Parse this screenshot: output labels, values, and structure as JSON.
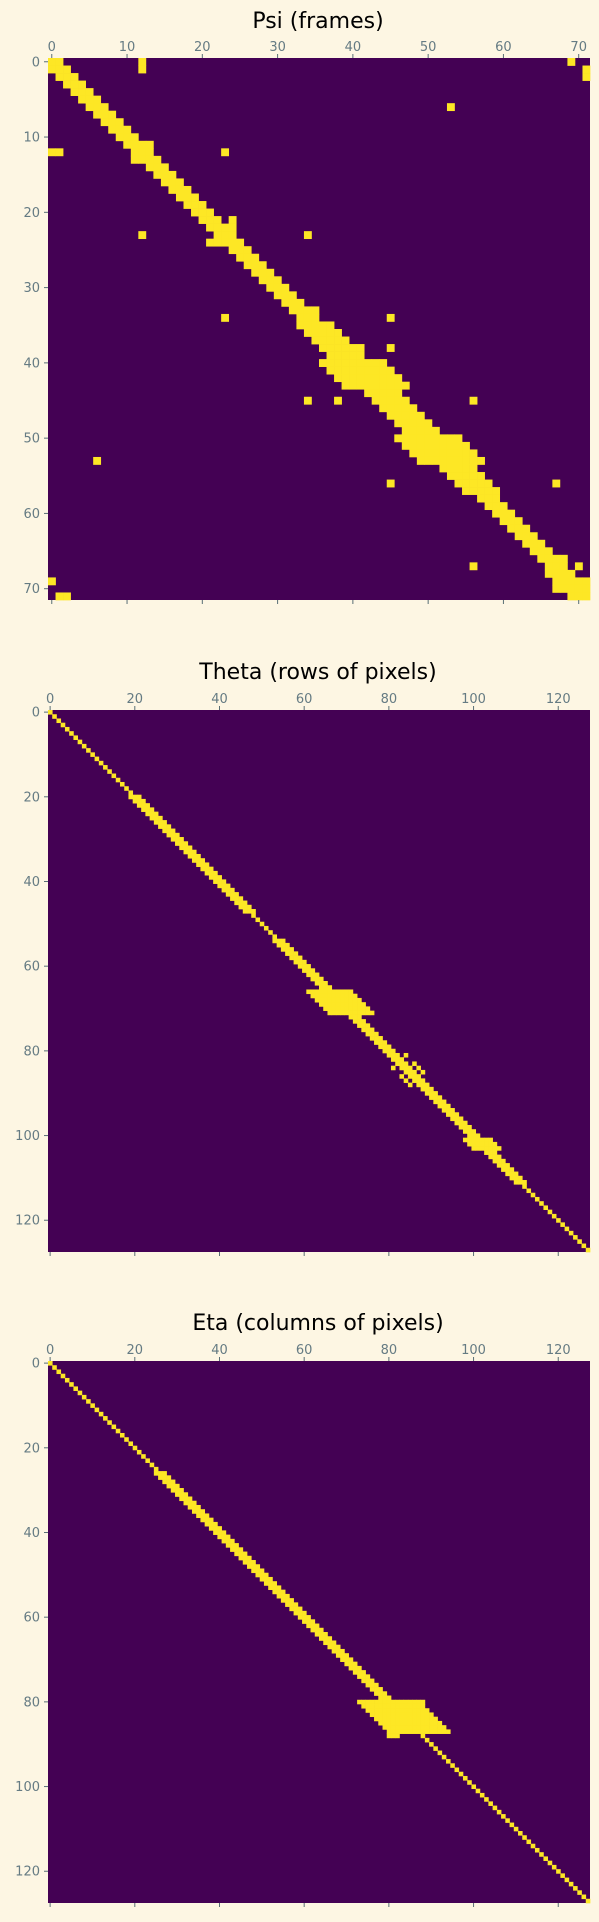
{
  "colors": {
    "background": "#fdf6e3",
    "matrix_zero": "#440154",
    "matrix_one": "#fde725",
    "tick_label": "#657b83",
    "title": "#000000"
  },
  "chart_data": [
    {
      "type": "heatmap",
      "title": "Psi (frames)",
      "n": 72,
      "xticks": [
        0,
        10,
        20,
        30,
        40,
        50,
        60,
        70
      ],
      "yticks": [
        0,
        10,
        20,
        30,
        40,
        50,
        60,
        70
      ],
      "diagonal_bands": [
        [
          0,
          6,
          2
        ],
        [
          6,
          12,
          2
        ],
        [
          12,
          23,
          2
        ],
        [
          23,
          35,
          2
        ],
        [
          35,
          46,
          3
        ],
        [
          46,
          58,
          3
        ],
        [
          58,
          72,
          2
        ]
      ],
      "diagonal_blocks": [
        [
          40,
          44,
          4
        ],
        [
          50,
          54,
          4
        ],
        [
          69,
          72,
          2
        ]
      ],
      "points": [
        [
          0,
          12
        ],
        [
          0,
          69
        ],
        [
          1,
          71
        ],
        [
          2,
          71
        ],
        [
          6,
          53
        ],
        [
          11,
          12
        ],
        [
          12,
          1
        ],
        [
          12,
          23
        ],
        [
          13,
          11
        ],
        [
          21,
          24
        ],
        [
          22,
          23
        ],
        [
          23,
          12
        ],
        [
          23,
          34
        ],
        [
          24,
          22
        ],
        [
          33,
          35
        ],
        [
          34,
          23
        ],
        [
          34,
          45
        ],
        [
          35,
          33
        ],
        [
          38,
          45
        ],
        [
          41,
          38
        ],
        [
          45,
          34
        ],
        [
          45,
          56
        ],
        [
          46,
          44
        ],
        [
          49,
          50
        ],
        [
          53,
          6
        ],
        [
          55,
          57
        ],
        [
          56,
          45
        ],
        [
          56,
          67
        ],
        [
          57,
          55
        ],
        [
          66,
          68
        ],
        [
          67,
          56
        ],
        [
          67,
          70
        ],
        [
          68,
          66
        ],
        [
          69,
          0
        ],
        [
          70,
          67
        ],
        [
          71,
          2
        ]
      ]
    },
    {
      "type": "heatmap",
      "title": "Theta (rows of pixels)",
      "n": 128,
      "xticks": [
        0,
        20,
        40,
        60,
        80,
        100,
        120
      ],
      "yticks": [
        0,
        20,
        40,
        60,
        80,
        100,
        120
      ],
      "diagonal_bands": [
        [
          0,
          20,
          1
        ],
        [
          20,
          33,
          2
        ],
        [
          33,
          48,
          2
        ],
        [
          48,
          54,
          1
        ],
        [
          54,
          66,
          2
        ],
        [
          66,
          73,
          2
        ],
        [
          73,
          79,
          2
        ],
        [
          79,
          100,
          2
        ],
        [
          100,
          112,
          2
        ],
        [
          112,
          128,
          1
        ]
      ],
      "diagonal_blocks": [
        [
          66,
          72,
          5
        ],
        [
          101,
          104,
          3
        ]
      ],
      "points": [
        [
          84,
          87
        ],
        [
          86,
          83
        ],
        [
          88,
          85
        ],
        [
          81,
          84
        ]
      ]
    },
    {
      "type": "heatmap",
      "title": "Eta (columns of pixels)",
      "n": 128,
      "xticks": [
        0,
        20,
        40,
        60,
        80,
        100,
        120
      ],
      "yticks": [
        0,
        20,
        40,
        60,
        80,
        100,
        120
      ],
      "diagonal_bands": [
        [
          0,
          26,
          1
        ],
        [
          26,
          78,
          2
        ],
        [
          78,
          88,
          2
        ],
        [
          88,
          128,
          1
        ]
      ],
      "diagonal_blocks": [
        [
          80,
          88,
          7
        ]
      ],
      "points": [
        [
          81,
          88
        ],
        [
          82,
          88
        ],
        [
          83,
          87
        ],
        [
          87,
          80
        ],
        [
          88,
          80
        ],
        [
          88,
          81
        ]
      ]
    }
  ]
}
